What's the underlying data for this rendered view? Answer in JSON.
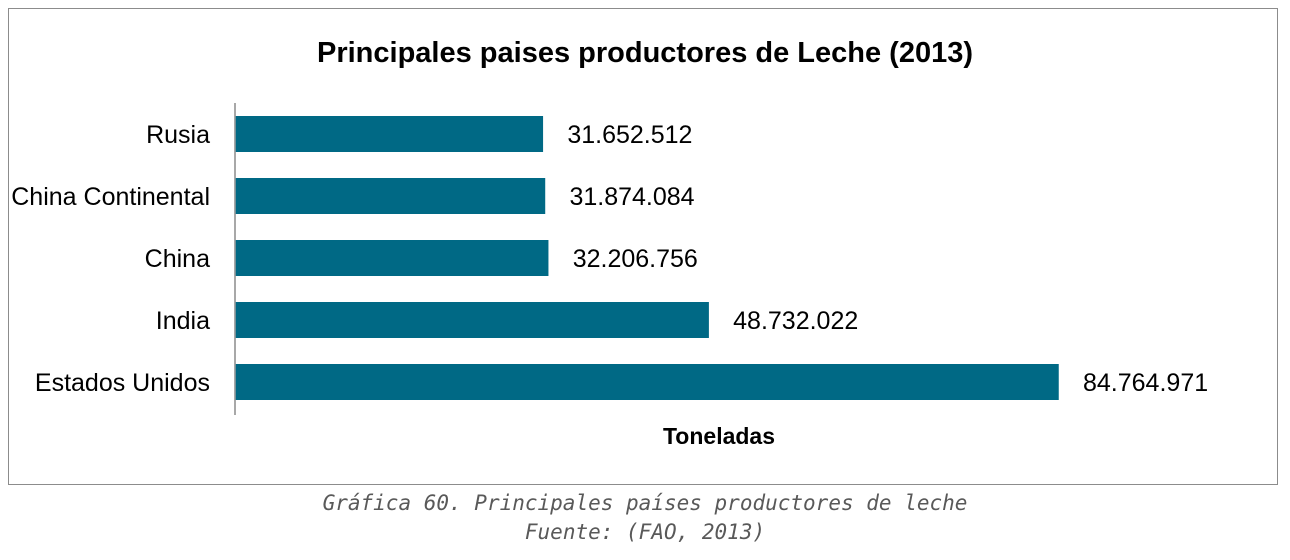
{
  "chart_data": {
    "type": "bar",
    "orientation": "horizontal",
    "title": "Principales paises productores de Leche (2013)",
    "xlabel": "Toneladas",
    "ylabel": "",
    "categories": [
      "Rusia",
      "China Continental",
      "China",
      "India",
      "Estados Unidos"
    ],
    "values": [
      31652512,
      31874084,
      32206756,
      48732022,
      84764971
    ],
    "value_labels": [
      "31.652.512",
      "31.874.084",
      "32.206.756",
      "48.732.022",
      "84.764.971"
    ],
    "xlim": [
      0,
      84764971
    ],
    "grid": false,
    "legend": "none",
    "bar_color": "#006985"
  },
  "caption": {
    "line1": "Gráfica 60. Principales países productores de leche",
    "line2": "Fuente: (FAO, 2013)"
  }
}
